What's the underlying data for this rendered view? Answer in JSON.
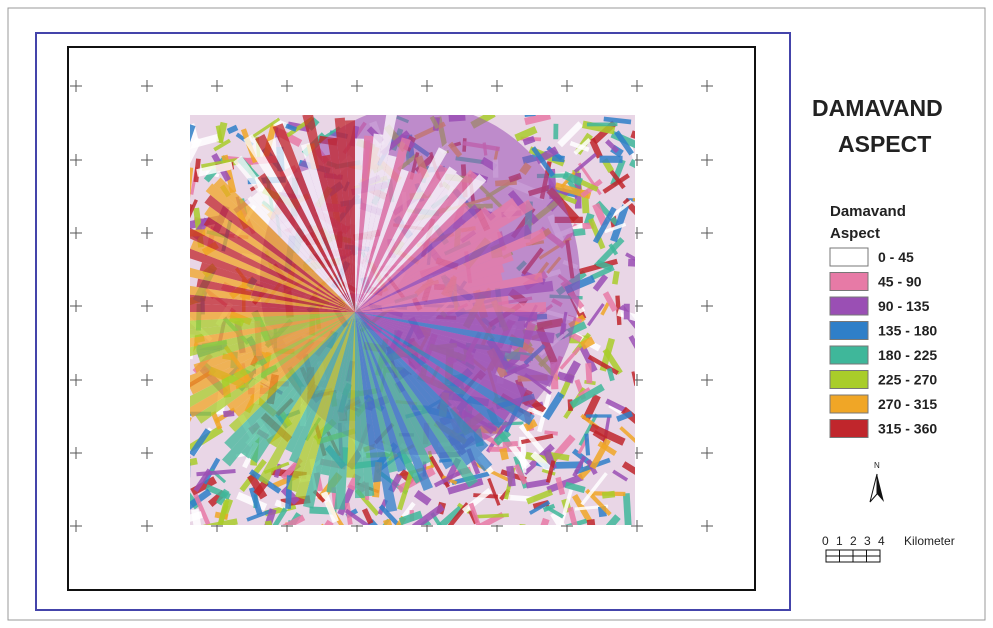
{
  "map": {
    "title": [
      "DAMAVAND",
      "ASPECT"
    ],
    "legend": {
      "title": [
        "Damavand",
        "Aspect"
      ],
      "items": [
        {
          "label": "0 - 45",
          "color": "#ffffff"
        },
        {
          "label": "45 - 90",
          "color": "#e77aa6"
        },
        {
          "label": "90 - 135",
          "color": "#9a4fb4"
        },
        {
          "label": "135 - 180",
          "color": "#2f7fc8"
        },
        {
          "label": "180 - 225",
          "color": "#3fb79a"
        },
        {
          "label": "225 - 270",
          "color": "#a9cd2a"
        },
        {
          "label": "270 - 315",
          "color": "#f0a626"
        },
        {
          "label": "315 - 360",
          "color": "#c0262c"
        }
      ]
    },
    "north": "N",
    "scale": {
      "ticks": [
        "0",
        "1",
        "2",
        "3",
        "4"
      ],
      "unit": "Kilometer"
    }
  }
}
